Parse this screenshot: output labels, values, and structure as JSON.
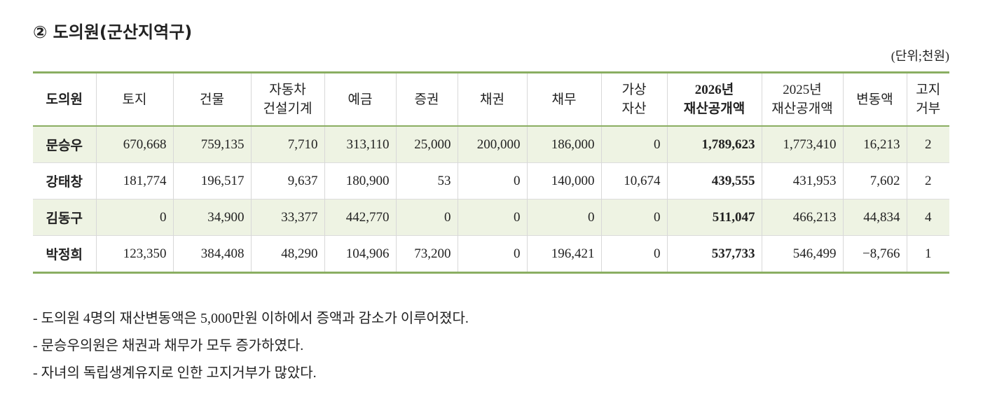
{
  "header": {
    "title": "② 도의원(군산지역구)",
    "unit": "(단위;천원)"
  },
  "table": {
    "columns": [
      "도의원",
      "토지",
      "건물",
      "자동차\n건설기계",
      "예금",
      "증권",
      "채권",
      "채무",
      "가상\n자산",
      "2026년\n재산공개액",
      "2025년\n재산공개액",
      "변동액",
      "고지\n거부"
    ],
    "rows": [
      [
        "문승우",
        "670,668",
        "759,135",
        "7,710",
        "313,110",
        "25,000",
        "200,000",
        "186,000",
        "0",
        "1,789,623",
        "1,773,410",
        "16,213",
        "2"
      ],
      [
        "강태창",
        "181,774",
        "196,517",
        "9,637",
        "180,900",
        "53",
        "0",
        "140,000",
        "10,674",
        "439,555",
        "431,953",
        "7,602",
        "2"
      ],
      [
        "김동구",
        "0",
        "34,900",
        "33,377",
        "442,770",
        "0",
        "0",
        "0",
        "0",
        "511,047",
        "466,213",
        "44,834",
        "4"
      ],
      [
        "박정희",
        "123,350",
        "384,408",
        "48,290",
        "104,906",
        "73,200",
        "0",
        "196,421",
        "0",
        "537,733",
        "546,499",
        "−8,766",
        "1"
      ]
    ]
  },
  "notes": [
    "- 도의원 4명의 재산변동액은 5,000만원 이하에서 증액과 감소가 이루어졌다.",
    "- 문승우의원은 채권과 채무가 모두 증가하였다.",
    "- 자녀의 독립생계유지로 인한 고지거부가 많았다."
  ]
}
